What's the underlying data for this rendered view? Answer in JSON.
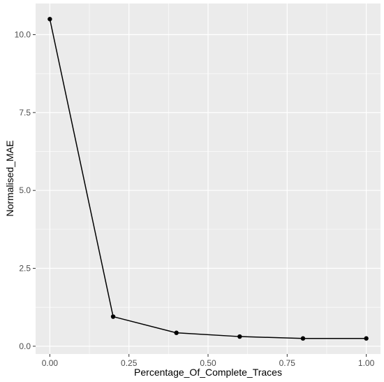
{
  "chart_data": {
    "type": "line",
    "title": "",
    "xlabel": "Percentage_Of_Complete_Traces",
    "ylabel": "Normalised_MAE",
    "x": [
      0.0,
      0.2,
      0.4,
      0.6,
      0.8,
      1.0
    ],
    "series": [
      {
        "values": [
          10.5,
          0.95,
          0.43,
          0.31,
          0.25,
          0.25
        ]
      }
    ],
    "xlim": [
      -0.045,
      1.045
    ],
    "ylim": [
      -0.25,
      11.0
    ],
    "xticks": [
      0.0,
      0.25,
      0.5,
      0.75,
      1.0
    ],
    "xtick_labels": [
      "0.00",
      "0.25",
      "0.50",
      "0.75",
      "1.00"
    ],
    "yticks": [
      0.0,
      2.5,
      5.0,
      7.5,
      10.0
    ],
    "ytick_labels": [
      "0.0",
      "2.5",
      "5.0",
      "7.5",
      "10.0"
    ],
    "grid": true,
    "colors": {
      "panel_background": "#ebebeb",
      "grid_major": "#ffffff",
      "line": "#000000",
      "points": "#000000",
      "tick_text": "#4d4d4d"
    }
  }
}
